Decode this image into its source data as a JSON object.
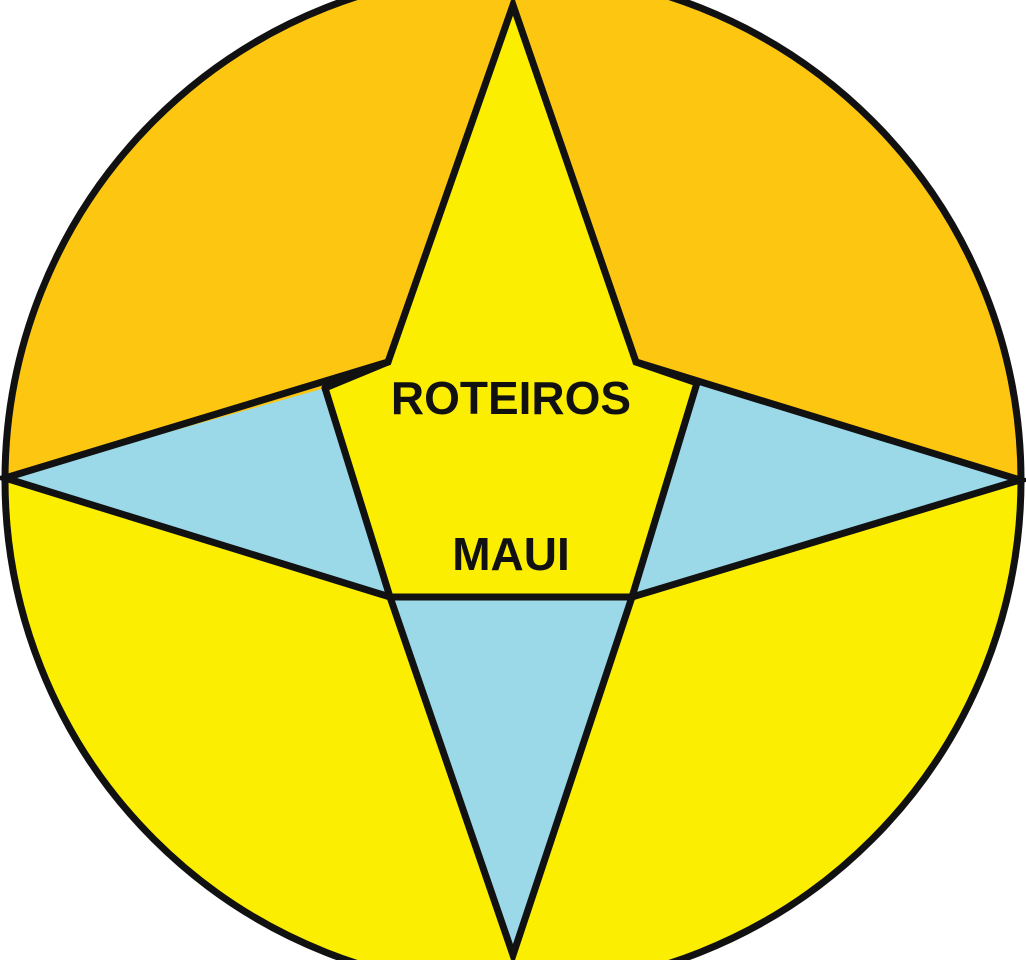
{
  "logo": {
    "line1": "ROTEIROS",
    "line2": "MAUI",
    "colors": {
      "upper_quadrants": "#fcc611",
      "lower_quadrants": "#fbee00",
      "star_center": "#fbee00",
      "star_side_points": "#9bd8e8",
      "outline": "#111111"
    }
  }
}
